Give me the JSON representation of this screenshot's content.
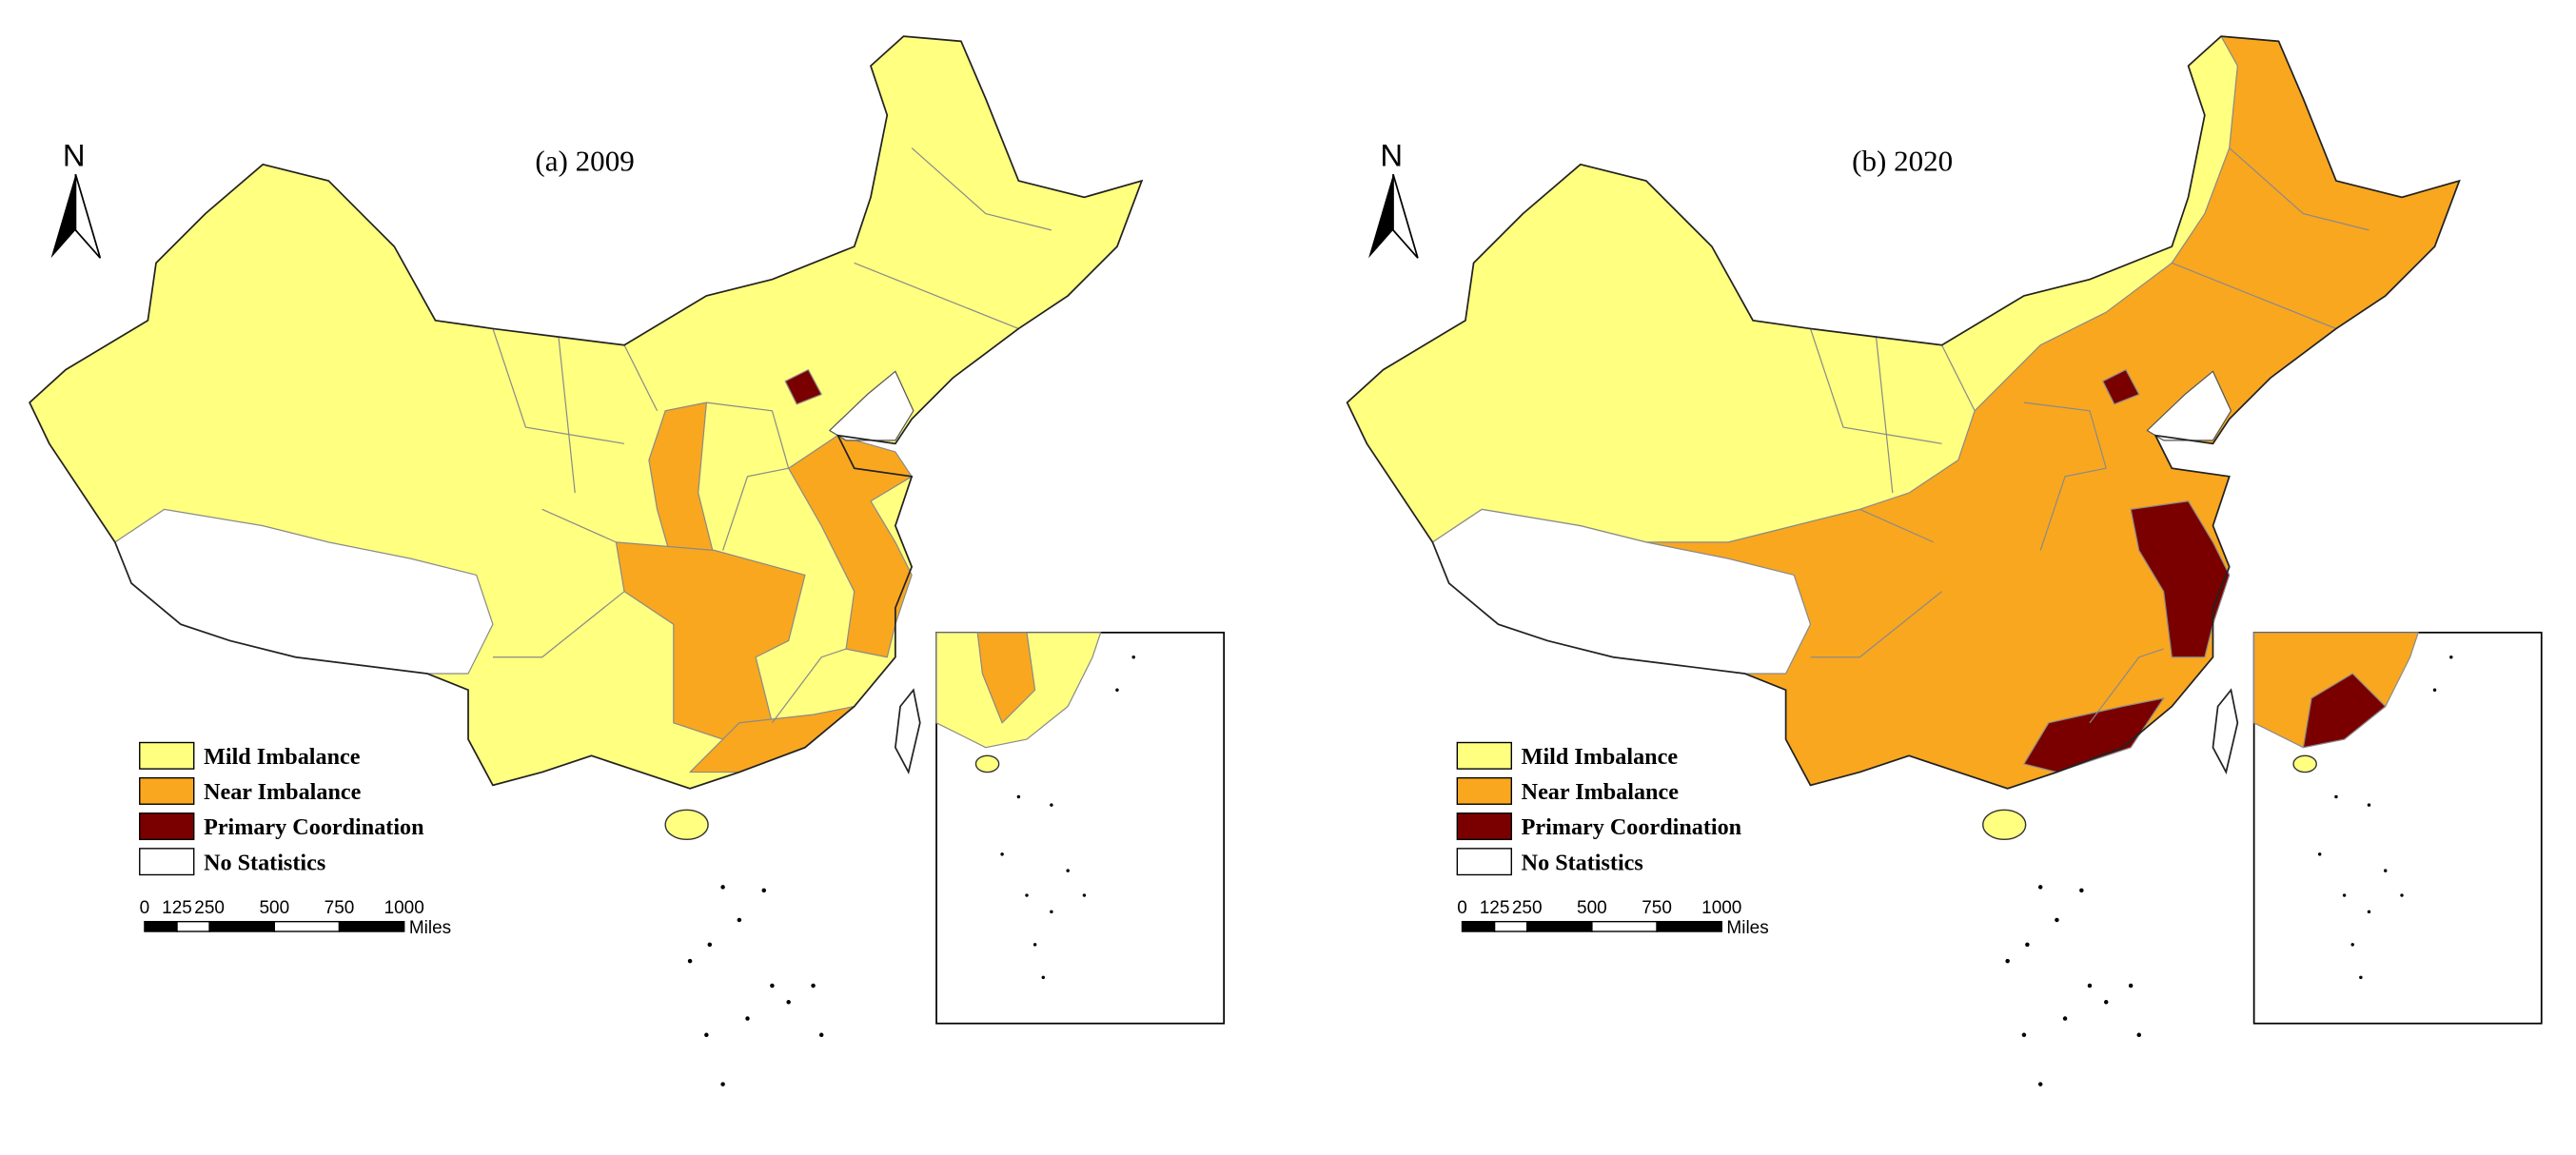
{
  "maps": [
    {
      "title": "(a) 2009",
      "north": "N",
      "legend": [
        {
          "label": "Mild Imbalance",
          "color": "#ffff80"
        },
        {
          "label": "Near Imbalance",
          "color": "#f9a71f"
        },
        {
          "label": "Primary Coordination",
          "color": "#7a0000"
        },
        {
          "label": "No Statistics",
          "color": "#ffffff"
        }
      ],
      "scale": {
        "ticks": [
          0,
          125,
          250,
          500,
          750,
          1000
        ],
        "unit": "Miles"
      }
    },
    {
      "title": "(b) 2020",
      "north": "N",
      "legend": [
        {
          "label": "Mild Imbalance",
          "color": "#ffff80"
        },
        {
          "label": "Near Imbalance",
          "color": "#f9a71f"
        },
        {
          "label": "Primary Coordination",
          "color": "#7a0000"
        },
        {
          "label": "No Statistics",
          "color": "#ffffff"
        }
      ],
      "scale": {
        "ticks": [
          0,
          125,
          250,
          500,
          750,
          1000
        ],
        "unit": "Miles"
      }
    }
  ]
}
